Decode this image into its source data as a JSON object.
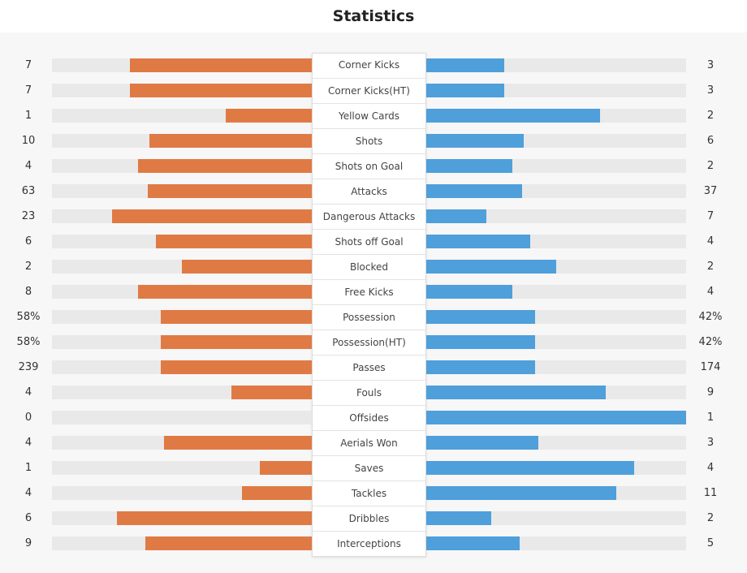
{
  "title": "Statistics",
  "colors": {
    "home": "#e07a45",
    "away": "#4f9fdb",
    "track": "#e9e9e9",
    "panel": "#f7f7f7"
  },
  "chart_data": {
    "type": "bar",
    "orientation": "diverging-horizontal",
    "series": [
      {
        "side": "left",
        "color": "#e07a45"
      },
      {
        "side": "right",
        "color": "#4f9fdb"
      }
    ],
    "rows": [
      {
        "label": "Corner Kicks",
        "home": "7",
        "away": "3",
        "home_value": 7,
        "away_value": 3
      },
      {
        "label": "Corner Kicks(HT)",
        "home": "7",
        "away": "3",
        "home_value": 7,
        "away_value": 3
      },
      {
        "label": "Yellow Cards",
        "home": "1",
        "away": "2",
        "home_value": 1,
        "away_value": 2
      },
      {
        "label": "Shots",
        "home": "10",
        "away": "6",
        "home_value": 10,
        "away_value": 6
      },
      {
        "label": "Shots on Goal",
        "home": "4",
        "away": "2",
        "home_value": 4,
        "away_value": 2
      },
      {
        "label": "Attacks",
        "home": "63",
        "away": "37",
        "home_value": 63,
        "away_value": 37
      },
      {
        "label": "Dangerous Attacks",
        "home": "23",
        "away": "7",
        "home_value": 23,
        "away_value": 7
      },
      {
        "label": "Shots off Goal",
        "home": "6",
        "away": "4",
        "home_value": 6,
        "away_value": 4
      },
      {
        "label": "Blocked",
        "home": "2",
        "away": "2",
        "home_value": 2,
        "away_value": 2
      },
      {
        "label": "Free Kicks",
        "home": "8",
        "away": "4",
        "home_value": 8,
        "away_value": 4
      },
      {
        "label": "Possession",
        "home": "58%",
        "away": "42%",
        "home_value": 58,
        "away_value": 42
      },
      {
        "label": "Possession(HT)",
        "home": "58%",
        "away": "42%",
        "home_value": 58,
        "away_value": 42
      },
      {
        "label": "Passes",
        "home": "239",
        "away": "174",
        "home_value": 239,
        "away_value": 174
      },
      {
        "label": "Fouls",
        "home": "4",
        "away": "9",
        "home_value": 4,
        "away_value": 9
      },
      {
        "label": "Offsides",
        "home": "0",
        "away": "1",
        "home_value": 0,
        "away_value": 1
      },
      {
        "label": "Aerials Won",
        "home": "4",
        "away": "3",
        "home_value": 4,
        "away_value": 3
      },
      {
        "label": "Saves",
        "home": "1",
        "away": "4",
        "home_value": 1,
        "away_value": 4
      },
      {
        "label": "Tackles",
        "home": "4",
        "away": "11",
        "home_value": 4,
        "away_value": 11
      },
      {
        "label": "Dribbles",
        "home": "6",
        "away": "2",
        "home_value": 6,
        "away_value": 2
      },
      {
        "label": "Interceptions",
        "home": "9",
        "away": "5",
        "home_value": 9,
        "away_value": 5
      }
    ],
    "bar_fill": [
      {
        "home": 0.7,
        "away": 0.3
      },
      {
        "home": 0.7,
        "away": 0.3
      },
      {
        "home": 0.33,
        "away": 0.67
      },
      {
        "home": 0.625,
        "away": 0.375
      },
      {
        "home": 0.67,
        "away": 0.33
      },
      {
        "home": 0.63,
        "away": 0.37
      },
      {
        "home": 0.77,
        "away": 0.23
      },
      {
        "home": 0.6,
        "away": 0.4
      },
      {
        "home": 0.5,
        "away": 0.5
      },
      {
        "home": 0.67,
        "away": 0.33
      },
      {
        "home": 0.58,
        "away": 0.42
      },
      {
        "home": 0.58,
        "away": 0.42
      },
      {
        "home": 0.58,
        "away": 0.42
      },
      {
        "home": 0.31,
        "away": 0.69
      },
      {
        "home": 0.0,
        "away": 1.0
      },
      {
        "home": 0.57,
        "away": 0.43
      },
      {
        "home": 0.2,
        "away": 0.8
      },
      {
        "home": 0.27,
        "away": 0.73
      },
      {
        "home": 0.75,
        "away": 0.25
      },
      {
        "home": 0.64,
        "away": 0.36
      }
    ]
  }
}
